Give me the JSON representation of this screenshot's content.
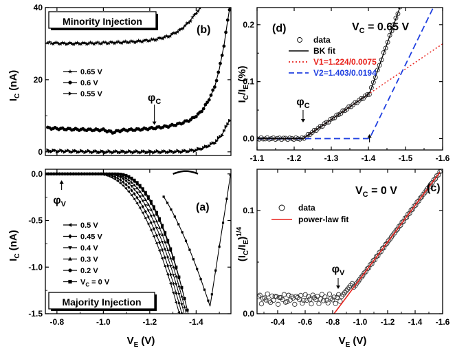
{
  "chart_data": [
    {
      "panel": "b",
      "type": "line",
      "label": "(b)",
      "boxed_title": "Minority Injection",
      "ylabel_main": "I",
      "ylabel_sub": "C",
      "ylabel_unit": " (nA)",
      "xlim": [
        -0.75,
        -1.55
      ],
      "ylim": [
        -1,
        40
      ],
      "yticks": [
        "0",
        "20",
        "40"
      ],
      "xticks": [],
      "annotation": {
        "text": "φ",
        "sub": "C",
        "x": -1.22,
        "y": 6.5
      },
      "series": [
        {
          "name": "0.65 V",
          "marker": "star",
          "points": [
            [
              -0.76,
              30.2
            ],
            [
              -0.85,
              30.0
            ],
            [
              -0.95,
              30.1
            ],
            [
              -1.05,
              30.3
            ],
            [
              -1.15,
              30.6
            ],
            [
              -1.22,
              31.1
            ],
            [
              -1.28,
              32.0
            ],
            [
              -1.33,
              33.7
            ],
            [
              -1.37,
              36.0
            ],
            [
              -1.4,
              38.5
            ],
            [
              -1.42,
              40
            ]
          ]
        },
        {
          "name": "0.6 V",
          "marker": "circle",
          "points": [
            [
              -0.76,
              6.6
            ],
            [
              -0.85,
              6.3
            ],
            [
              -0.95,
              6.1
            ],
            [
              -1.0,
              6.1
            ],
            [
              -1.04,
              5.4
            ],
            [
              -1.08,
              6.0
            ],
            [
              -1.15,
              6.2
            ],
            [
              -1.22,
              6.6
            ],
            [
              -1.28,
              7.1
            ],
            [
              -1.33,
              7.8
            ],
            [
              -1.38,
              9.0
            ],
            [
              -1.42,
              11.0
            ],
            [
              -1.45,
              13.8
            ],
            [
              -1.48,
              18.0
            ],
            [
              -1.5,
              23.0
            ],
            [
              -1.52,
              29.5
            ],
            [
              -1.535,
              36.0
            ],
            [
              -1.545,
              40
            ]
          ]
        },
        {
          "name": "0.55 V",
          "marker": "triangle-right",
          "points": [
            [
              -0.76,
              0.3
            ],
            [
              -0.9,
              0.1
            ],
            [
              -1.0,
              0.0
            ],
            [
              -1.1,
              0.0
            ],
            [
              -1.2,
              0.0
            ],
            [
              -1.3,
              0.05
            ],
            [
              -1.36,
              0.2
            ],
            [
              -1.4,
              0.5
            ],
            [
              -1.44,
              1.3
            ],
            [
              -1.48,
              2.6
            ],
            [
              -1.51,
              4.6
            ],
            [
              -1.53,
              7.0
            ],
            [
              -1.545,
              9.0
            ]
          ]
        }
      ],
      "legend": [
        "0.65 V",
        "0.6 V",
        "0.55 V"
      ]
    },
    {
      "panel": "a",
      "type": "line",
      "label": "(a)",
      "boxed_title": "Majority Injection",
      "ylabel_main": "I",
      "ylabel_sub": "C",
      "ylabel_unit": " (nA)",
      "xlabel_main": "V",
      "xlabel_sub": "E",
      "xlabel_unit": " (V)",
      "xlim": [
        -0.75,
        -1.55
      ],
      "ylim": [
        -1.5,
        0.05
      ],
      "yticks": [
        "0.0",
        "-0.5",
        "-1.0",
        "-1.5"
      ],
      "xticks": [
        "-0.8",
        "-1.0",
        "-1.2",
        "-1.4"
      ],
      "annotation": {
        "text": "φ",
        "sub": "V",
        "x": -0.82,
        "y": -0.05
      },
      "series": [
        {
          "name": "0.5 V",
          "marker": "triangle-left",
          "onset": -0.97,
          "k": 1.02
        },
        {
          "name": "0.45 V",
          "marker": "diamond",
          "onset": -0.99,
          "k": 1.08
        },
        {
          "name": "0.4 V",
          "marker": "triangle-down",
          "onset": -1.01,
          "k": 1.15
        },
        {
          "name": "0.3 V",
          "marker": "triangle-up",
          "onset": -1.03,
          "k": 1.24
        },
        {
          "name": "0.2 V",
          "marker": "circle",
          "onset": -1.05,
          "k": 1.34
        },
        {
          "name": "Vc = 0 V",
          "marker": "square",
          "onset": -1.06,
          "k": 1.44
        }
      ],
      "legend": [
        "0.5 V",
        "0.45 V",
        "0.4 V",
        "0.3 V",
        "0.2 V",
        "V"
      ],
      "legend_last_sub": "C",
      "legend_last_rest": " = 0 V"
    },
    {
      "panel": "d",
      "type": "line",
      "label": "(d)",
      "title_main": "V",
      "title_sub": "C",
      "title_rest": " = 0.65 V",
      "ylabel_main": "I",
      "ylabel_sub1": "C",
      "ylabel_mid": "/I",
      "ylabel_sub2": "E",
      "ylabel_unit": " (%)",
      "xlim": [
        -1.1,
        -1.6
      ],
      "ylim": [
        -0.02,
        0.23
      ],
      "yticks": [
        "0.0",
        "0.1",
        "0.2"
      ],
      "xticks": [
        "-1.1",
        "-1.2",
        "-1.3",
        "-1.4",
        "-1.5",
        "-1.6"
      ],
      "annotation": {
        "text": "φ",
        "sub": "C",
        "x": -1.224,
        "y": 0.0
      },
      "arrow2_x": -1.403,
      "legend": [
        "data",
        "BK fit",
        "V1=1.224/0.0075",
        "V2=1.403/0.0194"
      ],
      "series": [
        {
          "name": "data",
          "marker": "open-circle",
          "color": "#000000"
        },
        {
          "name": "BK fit",
          "style": "solid",
          "color": "#000000"
        },
        {
          "name": "V1=1.224/0.0075",
          "style": "dotted",
          "color": "#e8221c",
          "threshold": 1.224,
          "coef": 0.0075
        },
        {
          "name": "V2=1.403/0.0194",
          "style": "dashed",
          "color": "#1f3fe0",
          "threshold": 1.403,
          "coef": 0.0194
        }
      ]
    },
    {
      "panel": "c",
      "type": "scatter",
      "label": "(c)",
      "title_main": "V",
      "title_sub": "C",
      "title_rest": " = 0 V",
      "ylabel_text": "(I",
      "ylabel_sub1": "C",
      "ylabel_mid": "/I",
      "ylabel_sub2": "E",
      "ylabel_end": ")",
      "ylabel_sup": "1/4",
      "xlabel_main": "V",
      "xlabel_sub": "E",
      "xlabel_unit": " (V)",
      "xlim": [
        -0.25,
        -1.6
      ],
      "ylim": [
        0,
        0.14
      ],
      "yticks": [
        "0.0",
        "0.1"
      ],
      "xticks": [
        "-0.4",
        "-0.6",
        "-0.8",
        "-1.0",
        "-1.2",
        "-1.4",
        "-1.6"
      ],
      "annotation": {
        "text": "φ",
        "sub": "V",
        "x": -0.83,
        "y": 0.018
      },
      "legend": [
        "data",
        "power-law fit"
      ],
      "series": [
        {
          "name": "data",
          "marker": "open-circle",
          "color": "#000000"
        },
        {
          "name": "power-law fit",
          "style": "solid",
          "color": "#e8221c",
          "threshold": -0.81,
          "slope": 0.178
        }
      ]
    }
  ]
}
